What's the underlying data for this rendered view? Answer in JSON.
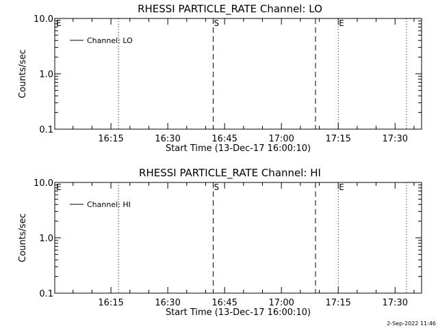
{
  "footer": {
    "timestamp": "2-Sep-2022 11:46"
  },
  "chart_data": [
    {
      "type": "line",
      "title": "RHESSI PARTICLE_RATE Channel: LO",
      "xlabel": "Start Time (13-Dec-17 16:00:10)",
      "ylabel": "Counts/sec",
      "x_ticks": [
        "16:15",
        "16:30",
        "16:45",
        "17:00",
        "17:15",
        "17:30"
      ],
      "y_ticks": [
        "0.1",
        "1.0",
        "10.0"
      ],
      "yscale": "log",
      "ylim": [
        0.1,
        10.0
      ],
      "legend": {
        "location": "top-left",
        "entries": [
          "Channel: LO"
        ]
      },
      "series": [
        {
          "name": "Channel: LO",
          "values": []
        }
      ],
      "vertical_markers": [
        {
          "time": "16:00",
          "style": "dotted",
          "label": "E"
        },
        {
          "time": "16:17",
          "style": "dotted",
          "label": ""
        },
        {
          "time": "16:42",
          "style": "dashed",
          "label": "S"
        },
        {
          "time": "17:09",
          "style": "dashed",
          "label": ""
        },
        {
          "time": "17:15",
          "style": "dotted",
          "label": "E"
        },
        {
          "time": "17:33",
          "style": "dotted",
          "label": ""
        }
      ]
    },
    {
      "type": "line",
      "title": "RHESSI PARTICLE_RATE Channel: HI",
      "xlabel": "Start Time (13-Dec-17 16:00:10)",
      "ylabel": "Counts/sec",
      "x_ticks": [
        "16:15",
        "16:30",
        "16:45",
        "17:00",
        "17:15",
        "17:30"
      ],
      "y_ticks": [
        "0.1",
        "1.0",
        "10.0"
      ],
      "yscale": "log",
      "ylim": [
        0.1,
        10.0
      ],
      "legend": {
        "location": "top-left",
        "entries": [
          "Channel: HI"
        ]
      },
      "series": [
        {
          "name": "Channel: HI",
          "values": []
        }
      ],
      "vertical_markers": [
        {
          "time": "16:00",
          "style": "dotted",
          "label": "E"
        },
        {
          "time": "16:17",
          "style": "dotted",
          "label": ""
        },
        {
          "time": "16:42",
          "style": "dashed",
          "label": "S"
        },
        {
          "time": "17:09",
          "style": "dashed",
          "label": ""
        },
        {
          "time": "17:15",
          "style": "dotted",
          "label": "E"
        },
        {
          "time": "17:33",
          "style": "dotted",
          "label": ""
        }
      ]
    }
  ]
}
